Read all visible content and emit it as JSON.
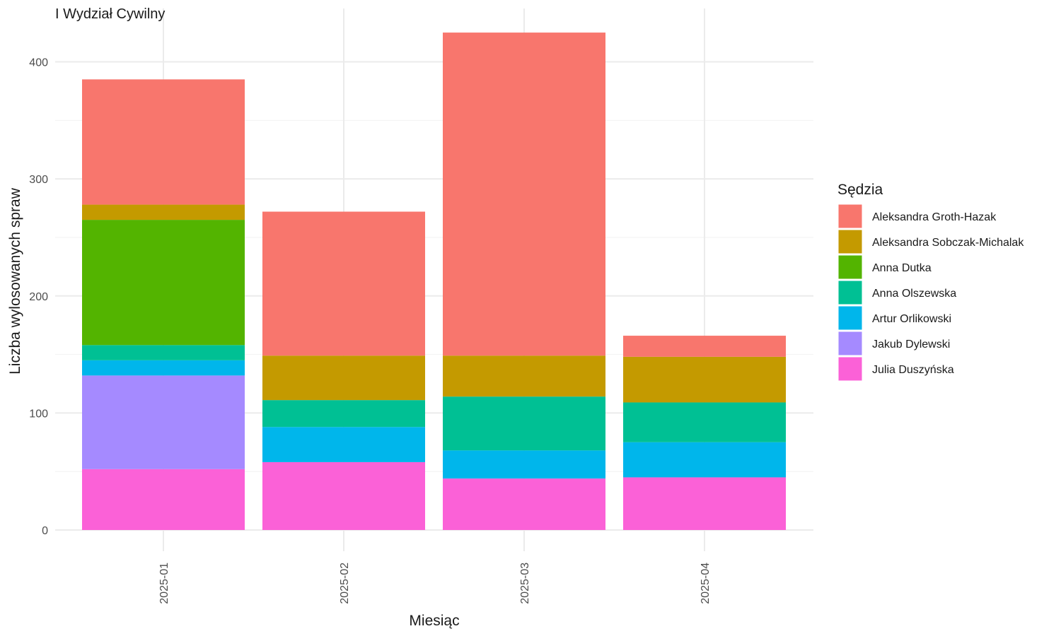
{
  "chart_data": {
    "type": "bar",
    "stacked": true,
    "title": "I Wydział Cywilny",
    "xlabel": "Miesiąc",
    "ylabel": "Liczba wylosowanych spraw",
    "ylim": [
      0,
      430
    ],
    "yticks": [
      0,
      100,
      200,
      300,
      400
    ],
    "grid": true,
    "legend": {
      "title": "Sędzia",
      "position": "right"
    },
    "categories": [
      "2025-01",
      "2025-02",
      "2025-03",
      "2025-04"
    ],
    "series": [
      {
        "name": "Aleksandra Groth-Hazak",
        "color": "#F8766D",
        "values": [
          107,
          123,
          276,
          18
        ]
      },
      {
        "name": "Aleksandra Sobczak-Michalak",
        "color": "#C49A00",
        "values": [
          13,
          38,
          35,
          39
        ]
      },
      {
        "name": "Anna Dutka",
        "color": "#53B400",
        "values": [
          107,
          0,
          0,
          0
        ]
      },
      {
        "name": "Anna Olszewska",
        "color": "#00C094",
        "values": [
          13,
          23,
          46,
          34
        ]
      },
      {
        "name": "Artur Orlikowski",
        "color": "#00B6EB",
        "values": [
          13,
          30,
          24,
          30
        ]
      },
      {
        "name": "Jakub Dylewski",
        "color": "#A58AFF",
        "values": [
          80,
          0,
          0,
          0
        ]
      },
      {
        "name": "Julia Duszyńska",
        "color": "#FB61D7",
        "values": [
          52,
          58,
          44,
          45
        ]
      }
    ]
  }
}
